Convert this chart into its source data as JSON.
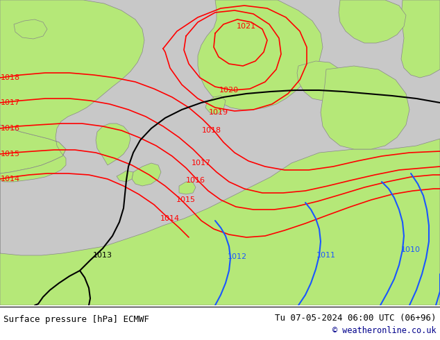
{
  "title_left": "Surface pressure [hPa] ECMWF",
  "title_right": "Tu 07-05-2024 06:00 UTC (06+96)",
  "copyright": "© weatheronline.co.uk",
  "bg_land": "#b5e878",
  "bg_sea": "#c8c8c8",
  "red_color": "#ff0000",
  "black_color": "#000000",
  "blue_color": "#1a56ff",
  "white_color": "#ffffff",
  "text_color": "#000000",
  "blue_text_color": "#00008b"
}
